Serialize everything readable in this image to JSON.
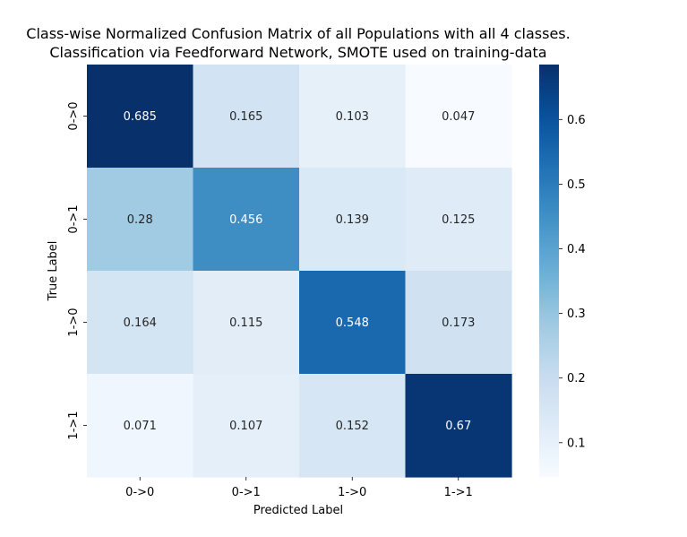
{
  "chart_data": {
    "type": "heatmap",
    "title_lines": [
      "Class-wise Normalized Confusion Matrix of all Populations with all 4 classes.",
      "Classification via Feedforward Network, SMOTE used on training-data"
    ],
    "xlabel": "Predicted Label",
    "ylabel": "True Label",
    "x_categories": [
      "0->0",
      "0->1",
      "1->0",
      "1->1"
    ],
    "y_categories": [
      "0->0",
      "0->1",
      "1->0",
      "1->1"
    ],
    "values": [
      [
        0.685,
        0.165,
        0.103,
        0.047
      ],
      [
        0.28,
        0.456,
        0.139,
        0.125
      ],
      [
        0.164,
        0.115,
        0.548,
        0.173
      ],
      [
        0.071,
        0.107,
        0.152,
        0.67
      ]
    ],
    "cell_labels": [
      [
        "0.685",
        "0.165",
        "0.103",
        "0.047"
      ],
      [
        "0.28",
        "0.456",
        "0.139",
        "0.125"
      ],
      [
        "0.164",
        "0.115",
        "0.548",
        "0.173"
      ],
      [
        "0.071",
        "0.107",
        "0.152",
        "0.67"
      ]
    ],
    "colormap": "Blues",
    "colorbar": {
      "vmin": 0.047,
      "vmax": 0.685,
      "ticks": [
        0.1,
        0.2,
        0.3,
        0.4,
        0.5,
        0.6
      ],
      "tick_labels": [
        "0.1",
        "0.2",
        "0.3",
        "0.4",
        "0.5",
        "0.6"
      ]
    }
  }
}
